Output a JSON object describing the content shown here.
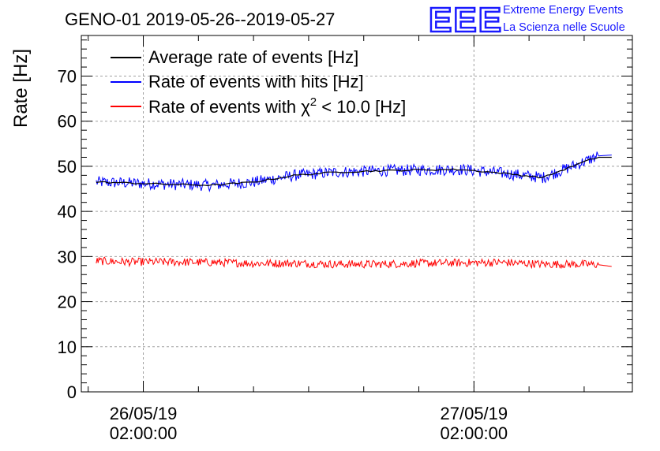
{
  "chart_data": {
    "type": "line",
    "title": "GENO-01 2019-05-26--2019-05-27",
    "ylabel": "Rate [Hz]",
    "xlabel": "",
    "ylim": [
      0,
      79
    ],
    "yticks": [
      0,
      10,
      20,
      30,
      40,
      50,
      60,
      70
    ],
    "xlim": [
      "2019-05-25 21:30",
      "2019-05-27 13:30"
    ],
    "xticks": [
      {
        "date": "26/05/19",
        "time": "02:00:00",
        "at": "2019-05-26 02:00"
      },
      {
        "date": "27/05/19",
        "time": "02:00:00",
        "at": "2019-05-27 02:00"
      }
    ],
    "grid": true,
    "legend": "top-left",
    "series": [
      {
        "name": "Average rate of events [Hz]",
        "color": "#000000",
        "x": [
          "2019-05-25 22:35",
          "2019-05-26 01:00",
          "2019-05-26 04:00",
          "2019-05-26 07:00",
          "2019-05-26 10:00",
          "2019-05-26 13:00",
          "2019-05-26 16:00",
          "2019-05-26 19:00",
          "2019-05-26 22:00",
          "2019-05-27 01:00",
          "2019-05-27 04:00",
          "2019-05-27 07:00",
          "2019-05-27 10:00",
          "2019-05-27 11:00",
          "2019-05-27 12:00"
        ],
        "values": [
          46.5,
          46.3,
          46.0,
          45.8,
          46.5,
          48.0,
          48.7,
          49.0,
          49.2,
          49.3,
          48.5,
          47.5,
          51.0,
          52.0,
          52.0
        ]
      },
      {
        "name": "Rate of events with hits [Hz]",
        "color": "#0000ff",
        "x": [
          "2019-05-25 22:35",
          "2019-05-26 01:00",
          "2019-05-26 04:00",
          "2019-05-26 07:00",
          "2019-05-26 10:00",
          "2019-05-26 13:00",
          "2019-05-26 16:00",
          "2019-05-26 19:00",
          "2019-05-26 22:00",
          "2019-05-27 01:00",
          "2019-05-27 04:00",
          "2019-05-27 07:00",
          "2019-05-27 10:00",
          "2019-05-27 11:00",
          "2019-05-27 12:00"
        ],
        "values": [
          46.5,
          46.3,
          46.0,
          45.8,
          46.5,
          48.0,
          48.7,
          49.0,
          49.2,
          49.3,
          48.5,
          47.5,
          51.0,
          52.3,
          52.5
        ]
      },
      {
        "name": "Rate of events with χ² < 10.0 [Hz]",
        "name_parts": {
          "pre": "Rate of events with ",
          "sym": "χ",
          "sup": "2",
          "post": " < 10.0 [Hz]"
        },
        "color": "#ff0000",
        "x": [
          "2019-05-25 22:35",
          "2019-05-26 01:00",
          "2019-05-26 04:00",
          "2019-05-26 07:00",
          "2019-05-26 10:00",
          "2019-05-26 13:00",
          "2019-05-26 16:00",
          "2019-05-26 19:00",
          "2019-05-26 22:00",
          "2019-05-27 01:00",
          "2019-05-27 04:00",
          "2019-05-27 07:00",
          "2019-05-27 10:00",
          "2019-05-27 11:00",
          "2019-05-27 12:00"
        ],
        "values": [
          29.0,
          28.8,
          28.8,
          28.7,
          28.5,
          28.5,
          28.3,
          28.3,
          28.5,
          28.6,
          28.7,
          28.3,
          28.3,
          28.2,
          27.8
        ]
      }
    ]
  },
  "logo": {
    "mark": "EEE",
    "line1": "Extreme Energy Events",
    "line2": "La Scienza nelle Scuole",
    "color": "#1a1aff"
  }
}
